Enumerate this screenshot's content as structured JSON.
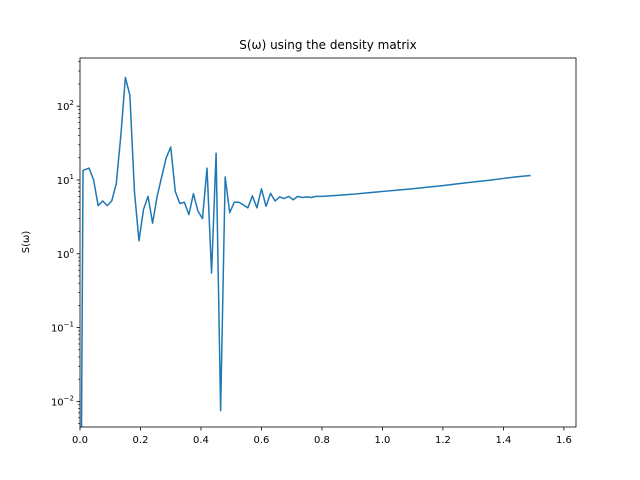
{
  "chart_data": {
    "type": "line",
    "title": "S(ω) using the density matrix",
    "xlabel": "",
    "ylabel": "S(ω)",
    "xlim": [
      0.0,
      1.64
    ],
    "ylim": [
      0.0045,
      450
    ],
    "yscale": "log",
    "grid": false,
    "color": "#1f77b4",
    "x_ticks": [
      0.0,
      0.2,
      0.4,
      0.6,
      0.8,
      1.0,
      1.2,
      1.4,
      1.6
    ],
    "x_tick_labels": [
      "0.0",
      "0.2",
      "0.4",
      "0.6",
      "0.8",
      "1.0",
      "1.2",
      "1.4",
      "1.6"
    ],
    "y_ticks": [
      0.01,
      0.1,
      1,
      10,
      100
    ],
    "y_tick_labels": [
      [
        "10",
        "−2"
      ],
      [
        "10",
        "−1"
      ],
      [
        "10",
        "0"
      ],
      [
        "10",
        "1"
      ],
      [
        "10",
        "2"
      ]
    ],
    "series": [
      {
        "x": [
          0.005,
          0.01,
          0.03,
          0.045,
          0.06,
          0.075,
          0.09,
          0.105,
          0.12,
          0.135,
          0.15,
          0.165,
          0.18,
          0.195,
          0.21,
          0.225,
          0.24,
          0.255,
          0.27,
          0.285,
          0.3,
          0.315,
          0.33,
          0.345,
          0.36,
          0.375,
          0.39,
          0.405,
          0.42,
          0.435,
          0.45,
          0.465,
          0.48,
          0.495,
          0.51,
          0.525,
          0.54,
          0.555,
          0.57,
          0.585,
          0.6,
          0.615,
          0.63,
          0.645,
          0.66,
          0.675,
          0.69,
          0.705,
          0.72,
          0.735,
          0.75,
          0.765,
          0.78,
          0.8,
          0.85,
          0.9,
          0.95,
          1.0,
          1.05,
          1.1,
          1.15,
          1.2,
          1.25,
          1.3,
          1.35,
          1.4,
          1.45,
          1.49
        ],
        "y": [
          0.0045,
          13.5,
          14.5,
          10,
          4.5,
          5.2,
          4.5,
          5.2,
          9,
          40,
          245,
          140,
          7,
          1.5,
          4,
          6,
          2.6,
          6,
          11,
          20,
          28,
          7,
          4.8,
          5.0,
          3.4,
          6.5,
          3.8,
          3.0,
          14.5,
          0.55,
          23,
          0.0075,
          11,
          3.6,
          5.0,
          5.0,
          4.6,
          4.2,
          6.1,
          4.2,
          7.6,
          4.4,
          6.6,
          5.2,
          5.9,
          5.6,
          6.0,
          5.4,
          6.0,
          5.8,
          5.9,
          5.8,
          6.0,
          6.0,
          6.2,
          6.4,
          6.7,
          7.0,
          7.3,
          7.6,
          8.0,
          8.4,
          8.9,
          9.4,
          9.9,
          10.5,
          11.1,
          11.5
        ]
      }
    ]
  }
}
